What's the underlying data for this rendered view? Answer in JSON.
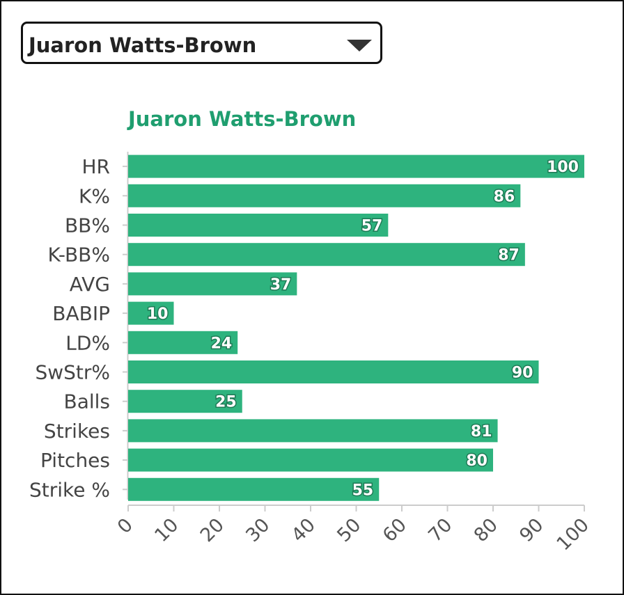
{
  "selector": {
    "value": "Juaron Watts-Brown"
  },
  "colors": {
    "bar": "#2eb37e",
    "title": "#1f9e6f",
    "axis": "#cccccc"
  },
  "chart_data": {
    "type": "bar",
    "orientation": "horizontal",
    "title": "Juaron Watts-Brown",
    "categories": [
      "HR",
      "K%",
      "BB%",
      "K-BB%",
      "AVG",
      "BABIP",
      "LD%",
      "SwStr%",
      "Balls",
      "Strikes",
      "Pitches",
      "Strike %"
    ],
    "values": [
      100,
      86,
      57,
      87,
      37,
      10,
      24,
      90,
      25,
      81,
      80,
      55
    ],
    "xlim": [
      0,
      100
    ],
    "xticks": [
      0,
      10,
      20,
      30,
      40,
      50,
      60,
      70,
      80,
      90,
      100
    ],
    "data_labels": true,
    "grid": false,
    "legend": "none"
  }
}
